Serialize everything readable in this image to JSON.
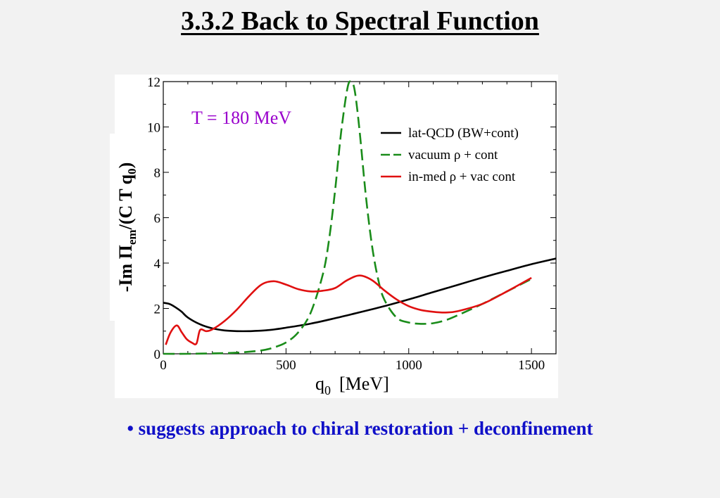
{
  "slide": {
    "title": "3.3.2  Back to Spectral Function",
    "bullet": "• suggests approach to chiral restoration + deconfinement"
  },
  "chart_data": {
    "type": "line",
    "annotation": "T = 180 MeV",
    "annotation_color": "#9900cc",
    "xlabel_main": "q",
    "xlabel_sub": "0",
    "xlabel_unit": "[MeV]",
    "ylabel_prefix": "-Im Π",
    "ylabel_sub": "em",
    "ylabel_mid": "/(C T q",
    "ylabel_sub2": "0",
    "ylabel_suffix": ")",
    "xlim": [
      0,
      1600
    ],
    "ylim": [
      0,
      12
    ],
    "x_ticks": [
      0,
      500,
      1000,
      1500
    ],
    "y_ticks": [
      0,
      2,
      4,
      6,
      8,
      10,
      12
    ],
    "legend_position": "top-right",
    "series": [
      {
        "name": "lat-QCD (BW+cont)",
        "color": "#000000",
        "dash": "solid",
        "x": [
          0,
          25,
          50,
          75,
          100,
          150,
          200,
          250,
          300,
          350,
          400,
          450,
          500,
          600,
          700,
          800,
          900,
          1000,
          1100,
          1200,
          1300,
          1400,
          1500,
          1600
        ],
        "y": [
          2.25,
          2.2,
          2.05,
          1.85,
          1.6,
          1.3,
          1.12,
          1.03,
          1.0,
          1.0,
          1.02,
          1.07,
          1.15,
          1.33,
          1.57,
          1.83,
          2.1,
          2.4,
          2.72,
          3.04,
          3.36,
          3.66,
          3.95,
          4.2
        ]
      },
      {
        "name": "vacuum ρ + cont",
        "color": "#1a8c1a",
        "dash": "dashed",
        "x": [
          0,
          100,
          200,
          300,
          400,
          450,
          500,
          550,
          600,
          650,
          675,
          700,
          725,
          750,
          765,
          780,
          800,
          825,
          850,
          875,
          900,
          950,
          1000,
          1050,
          1100,
          1150,
          1200,
          1300,
          1400,
          1500
        ],
        "y": [
          0,
          0,
          0.02,
          0.05,
          0.15,
          0.28,
          0.5,
          0.95,
          1.8,
          3.5,
          5.0,
          7.2,
          9.8,
          11.7,
          12.0,
          11.6,
          9.8,
          7.0,
          4.8,
          3.3,
          2.4,
          1.6,
          1.38,
          1.32,
          1.35,
          1.48,
          1.7,
          2.2,
          2.75,
          3.3
        ]
      },
      {
        "name": "in-med ρ + vac cont",
        "color": "#e01010",
        "dash": "solid",
        "x": [
          10,
          30,
          55,
          75,
          95,
          115,
          135,
          150,
          175,
          200,
          250,
          300,
          350,
          400,
          450,
          500,
          550,
          600,
          650,
          700,
          750,
          800,
          850,
          900,
          950,
          1000,
          1050,
          1100,
          1150,
          1200,
          1300,
          1400,
          1500
        ],
        "y": [
          0.4,
          0.95,
          1.25,
          0.95,
          0.65,
          0.5,
          0.45,
          1.05,
          1.0,
          1.08,
          1.45,
          1.95,
          2.55,
          3.05,
          3.2,
          3.05,
          2.85,
          2.75,
          2.78,
          2.9,
          3.25,
          3.45,
          3.25,
          2.8,
          2.4,
          2.1,
          1.93,
          1.85,
          1.82,
          1.88,
          2.2,
          2.75,
          3.35
        ]
      }
    ]
  }
}
